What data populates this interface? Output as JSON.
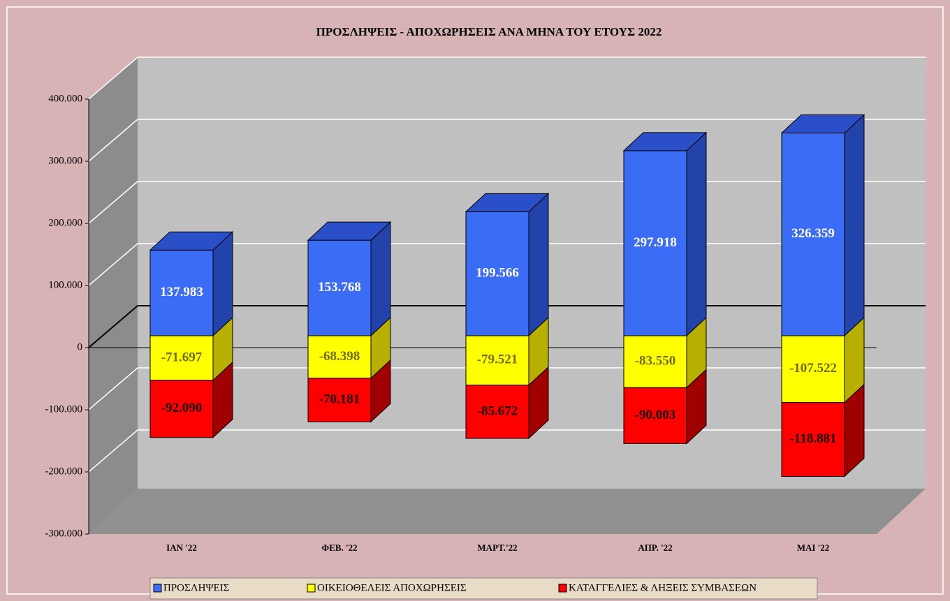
{
  "chart_data": {
    "type": "bar3d_stacked",
    "title": "ΠΡΟΣΛΗΨΕΙΣ - ΑΠΟΧΩΡΗΣΕΙΣ  ΑΝΑ ΜΗΝΑ ΤΟΥ  ΕΤΟΥΣ  2022",
    "categories": [
      "ΙΑΝ  '22",
      "ΦΕΒ. '22",
      "ΜΑΡΤ.'22",
      "ΑΠΡ. '22",
      "ΜΑΙ  '22"
    ],
    "series": [
      {
        "name": "ΠΡΟΣΛΗΨΕΙΣ",
        "color": "#3b6cf5",
        "values": [
          137983,
          153768,
          199566,
          297918,
          326359
        ],
        "value_labels": [
          "137.983",
          "153.768",
          "199.566",
          "297.918",
          "326.359"
        ]
      },
      {
        "name": "ΟΙΚΕΙΟΘΕΛΕΙΣ ΑΠΟΧΩΡΗΣΕΙΣ",
        "color": "#ffff00",
        "values": [
          -71697,
          -68398,
          -79521,
          -83550,
          -107522
        ],
        "value_labels": [
          "-71.697",
          "-68.398",
          "-79.521",
          "-83.550",
          "-107.522"
        ]
      },
      {
        "name": "ΚΑΤΑΓΓΕΛΙΕΣ & ΛΗΞΕΙΣ ΣΥΜΒΑΣΕΩΝ",
        "color": "#ff0000",
        "values": [
          -92090,
          -70181,
          -85672,
          -90003,
          -118881
        ],
        "value_labels": [
          "-92.090",
          "-70.181",
          "-85.672",
          "-90.003",
          "-118.881"
        ]
      }
    ],
    "ylim": [
      -300000,
      400000
    ],
    "yticks": [
      {
        "value": -300000,
        "label": "-300.000"
      },
      {
        "value": -200000,
        "label": "-200.000"
      },
      {
        "value": -100000,
        "label": "-100.000"
      },
      0,
      {
        "value": 100000,
        "label": "100.000"
      },
      {
        "value": 200000,
        "label": "200.000"
      },
      {
        "value": 300000,
        "label": "300.000"
      },
      {
        "value": 400000,
        "label": "400.000"
      }
    ],
    "grid": true,
    "legend": "bottom"
  }
}
